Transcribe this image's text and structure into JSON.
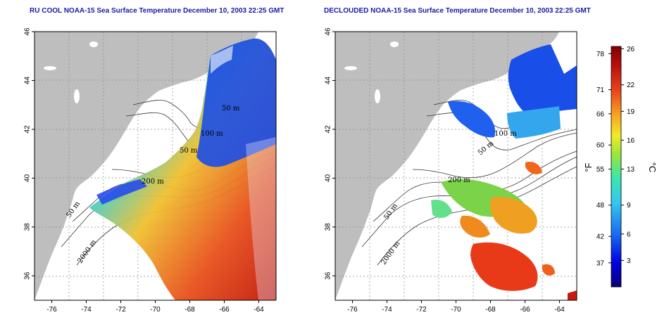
{
  "titles": {
    "left": "RU COOL NOAA-15 Sea Surface Temperature December 10, 2003 22:25 GMT",
    "right": "DECLOUDED NOAA-15 Sea Surface Temperature December 10, 2003 22:25 GMT"
  },
  "map": {
    "lon_ticks": [
      "-76",
      "-74",
      "-72",
      "-70",
      "-68",
      "-66",
      "-64"
    ],
    "lat_ticks": [
      "36",
      "38",
      "40",
      "42",
      "44",
      "46"
    ],
    "lon_range": [
      -77,
      -63
    ],
    "lat_range": [
      35,
      46
    ],
    "land_color": "#bebebe",
    "grid": "dotted"
  },
  "contour_labels": {
    "m50": "50 m",
    "m100": "100 m",
    "m200": "200 m",
    "m2000": "2000 m"
  },
  "colorbar": {
    "fahrenheit_ticks": [
      "78",
      "71",
      "66",
      "60",
      "55",
      "48",
      "42",
      "37"
    ],
    "celsius_ticks": [
      "26",
      "22",
      "19",
      "16",
      "13",
      "9",
      "6",
      "3"
    ],
    "fahrenheit_label": "°F",
    "celsius_label": "°C",
    "colors": [
      "#08007a",
      "#0000e0",
      "#1a6cf0",
      "#33c8ee",
      "#39e6b0",
      "#9be63c",
      "#f2ea28",
      "#f6a020",
      "#e8401c",
      "#b8100c",
      "#800000"
    ]
  }
}
